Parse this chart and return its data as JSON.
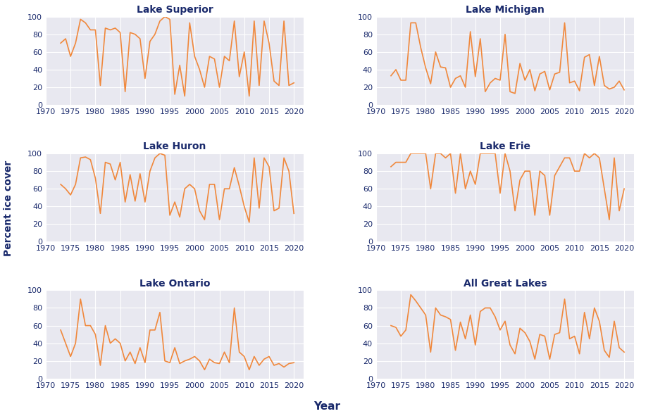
{
  "years": [
    1973,
    1974,
    1975,
    1976,
    1977,
    1978,
    1979,
    1980,
    1981,
    1982,
    1983,
    1984,
    1985,
    1986,
    1987,
    1988,
    1989,
    1990,
    1991,
    1992,
    1993,
    1994,
    1995,
    1996,
    1997,
    1998,
    1999,
    2000,
    2001,
    2002,
    2003,
    2004,
    2005,
    2006,
    2007,
    2008,
    2009,
    2010,
    2011,
    2012,
    2013,
    2014,
    2015,
    2016,
    2017,
    2018,
    2019,
    2020
  ],
  "superior": [
    70,
    75,
    55,
    70,
    97,
    93,
    85,
    85,
    22,
    87,
    85,
    87,
    82,
    15,
    82,
    80,
    75,
    30,
    72,
    80,
    95,
    100,
    97,
    12,
    45,
    10,
    93,
    55,
    40,
    20,
    55,
    52,
    20,
    55,
    50,
    95,
    32,
    60,
    10,
    95,
    22,
    95,
    70,
    27,
    22,
    95,
    22,
    25
  ],
  "michigan": [
    33,
    40,
    28,
    28,
    93,
    93,
    65,
    42,
    24,
    60,
    43,
    42,
    20,
    30,
    33,
    20,
    83,
    32,
    75,
    15,
    25,
    30,
    28,
    80,
    15,
    13,
    47,
    28,
    40,
    16,
    35,
    38,
    17,
    35,
    37,
    93,
    25,
    27,
    16,
    54,
    57,
    22,
    55,
    22,
    18,
    20,
    27,
    17
  ],
  "huron": [
    65,
    60,
    53,
    65,
    95,
    96,
    93,
    72,
    32,
    90,
    88,
    70,
    90,
    45,
    76,
    46,
    77,
    45,
    80,
    95,
    100,
    98,
    30,
    45,
    28,
    60,
    65,
    60,
    35,
    25,
    65,
    65,
    25,
    60,
    60,
    84,
    63,
    40,
    22,
    95,
    38,
    95,
    85,
    35,
    38,
    95,
    80,
    32
  ],
  "erie": [
    85,
    90,
    90,
    90,
    100,
    100,
    100,
    100,
    60,
    100,
    100,
    95,
    100,
    55,
    100,
    60,
    80,
    65,
    100,
    100,
    100,
    100,
    55,
    100,
    80,
    35,
    70,
    80,
    80,
    30,
    80,
    75,
    30,
    75,
    85,
    95,
    95,
    80,
    80,
    100,
    95,
    100,
    95,
    60,
    25,
    95,
    35,
    60
  ],
  "ontario": [
    55,
    40,
    25,
    40,
    90,
    60,
    60,
    50,
    15,
    60,
    40,
    45,
    40,
    20,
    30,
    17,
    35,
    18,
    55,
    55,
    75,
    20,
    18,
    35,
    17,
    20,
    22,
    25,
    20,
    10,
    22,
    18,
    17,
    30,
    18,
    80,
    30,
    25,
    10,
    25,
    15,
    22,
    25,
    15,
    17,
    13,
    17,
    18
  ],
  "all": [
    60,
    58,
    48,
    55,
    95,
    88,
    80,
    72,
    30,
    80,
    72,
    70,
    67,
    32,
    64,
    45,
    72,
    38,
    76,
    80,
    80,
    70,
    55,
    65,
    38,
    28,
    57,
    52,
    42,
    22,
    50,
    48,
    22,
    50,
    52,
    90,
    45,
    48,
    28,
    75,
    45,
    80,
    65,
    32,
    24,
    65,
    35,
    30
  ],
  "line_color": "#f0883c",
  "bg_color": "#e8e8f0",
  "title_color": "#1a2a6c",
  "tick_color": "#1a2a6c",
  "label_color": "#1a2a6c",
  "grid_color": "#ffffff",
  "titles": [
    "Lake Superior",
    "Lake Michigan",
    "Lake Huron",
    "Lake Erie",
    "Lake Ontario",
    "All Great Lakes"
  ],
  "ylabel": "Percent ice cover",
  "xlabel": "Year",
  "ylim": [
    0,
    100
  ],
  "xlim": [
    1970,
    2022
  ],
  "yticks": [
    0,
    20,
    40,
    60,
    80,
    100
  ],
  "xticks": [
    1970,
    1975,
    1980,
    1985,
    1990,
    1995,
    2000,
    2005,
    2010,
    2015,
    2020
  ]
}
